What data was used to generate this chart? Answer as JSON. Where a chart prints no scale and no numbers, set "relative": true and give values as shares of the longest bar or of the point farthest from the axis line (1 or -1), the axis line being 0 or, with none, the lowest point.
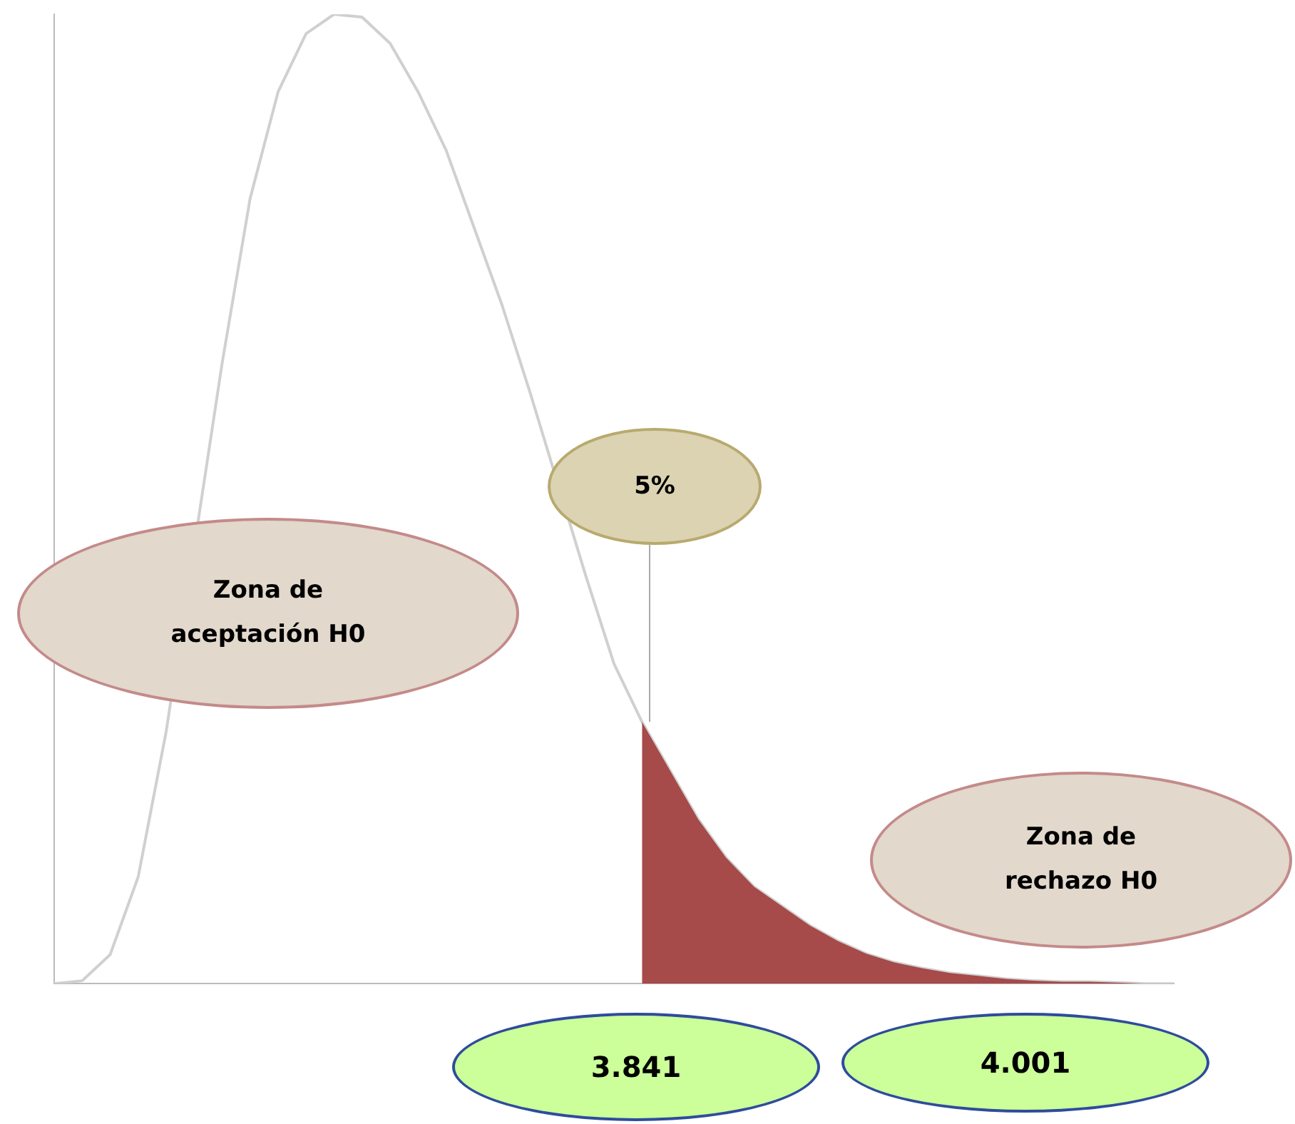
{
  "chart_data": {
    "type": "line",
    "relative": true,
    "grid": false,
    "legend": false,
    "marker": "none",
    "categories": [
      null,
      null,
      null,
      null,
      null,
      null,
      null,
      null,
      null,
      null,
      null,
      null,
      null,
      null,
      null,
      null,
      null,
      null,
      null,
      null,
      null,
      null,
      null,
      null,
      null,
      null,
      null,
      null,
      null,
      null,
      null,
      null,
      null,
      null,
      null,
      null,
      null,
      null,
      null,
      null,
      null
    ],
    "series": [
      {
        "color": "#d0d0d0",
        "values": [
          0,
          0.003,
          0.03,
          0.11,
          0.26,
          null,
          0.64,
          0.81,
          0.92,
          0.98,
          1,
          0.997,
          0.97,
          0.92,
          0.86,
          0.78,
          0.7,
          0.61,
          null,
          0.42,
          0.33,
          0.27,
          0.22,
          0.17,
          0.13,
          0.1,
          0.08,
          0.06,
          0.044,
          0.031,
          0.022,
          0.016,
          0.011,
          0.008,
          0.005,
          0.003,
          0.002,
          0.002,
          0.001,
          0,
          0
        ]
      },
      {
        "type": "area",
        "color": "#a64a4a",
        "values": [
          null,
          null,
          null,
          null,
          null,
          null,
          null,
          null,
          null,
          null,
          null,
          null,
          null,
          null,
          null,
          null,
          null,
          null,
          null,
          null,
          null,
          0.27,
          0.22,
          0.17,
          0.13,
          0.1,
          0.08,
          0.06,
          0.044,
          0.031,
          0.022,
          0.016,
          0.011,
          0.008,
          0.005,
          0.003,
          0.002,
          0.002,
          0.001,
          0,
          0
        ]
      }
    ],
    "annotations": [
      "Zona de aceptación H0",
      "5%",
      "Zona de rechazo H0",
      "3.841",
      "4.001"
    ]
  }
}
